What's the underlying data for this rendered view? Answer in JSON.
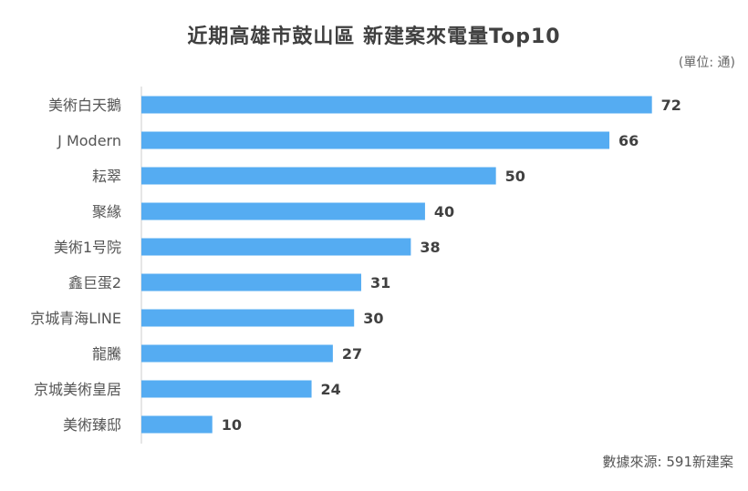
{
  "chart_data": {
    "type": "bar",
    "orientation": "horizontal",
    "title": "近期高雄市鼓山區 新建案來電量Top10",
    "unit_note": "(單位: 通)",
    "source": "數據來源: 591新建案",
    "categories": [
      "美術白天鵝",
      "J Modern",
      "耘翠",
      "聚緣",
      "美術1号院",
      "鑫巨蛋2",
      "京城青海LINE",
      "龍騰",
      "京城美術皇居",
      "美術臻邸"
    ],
    "values": [
      72,
      66,
      50,
      40,
      38,
      31,
      30,
      27,
      24,
      10
    ],
    "xlim": [
      0,
      75
    ],
    "grid": false,
    "bar_color": "#55acf2",
    "axis_color": "#cccccc"
  }
}
